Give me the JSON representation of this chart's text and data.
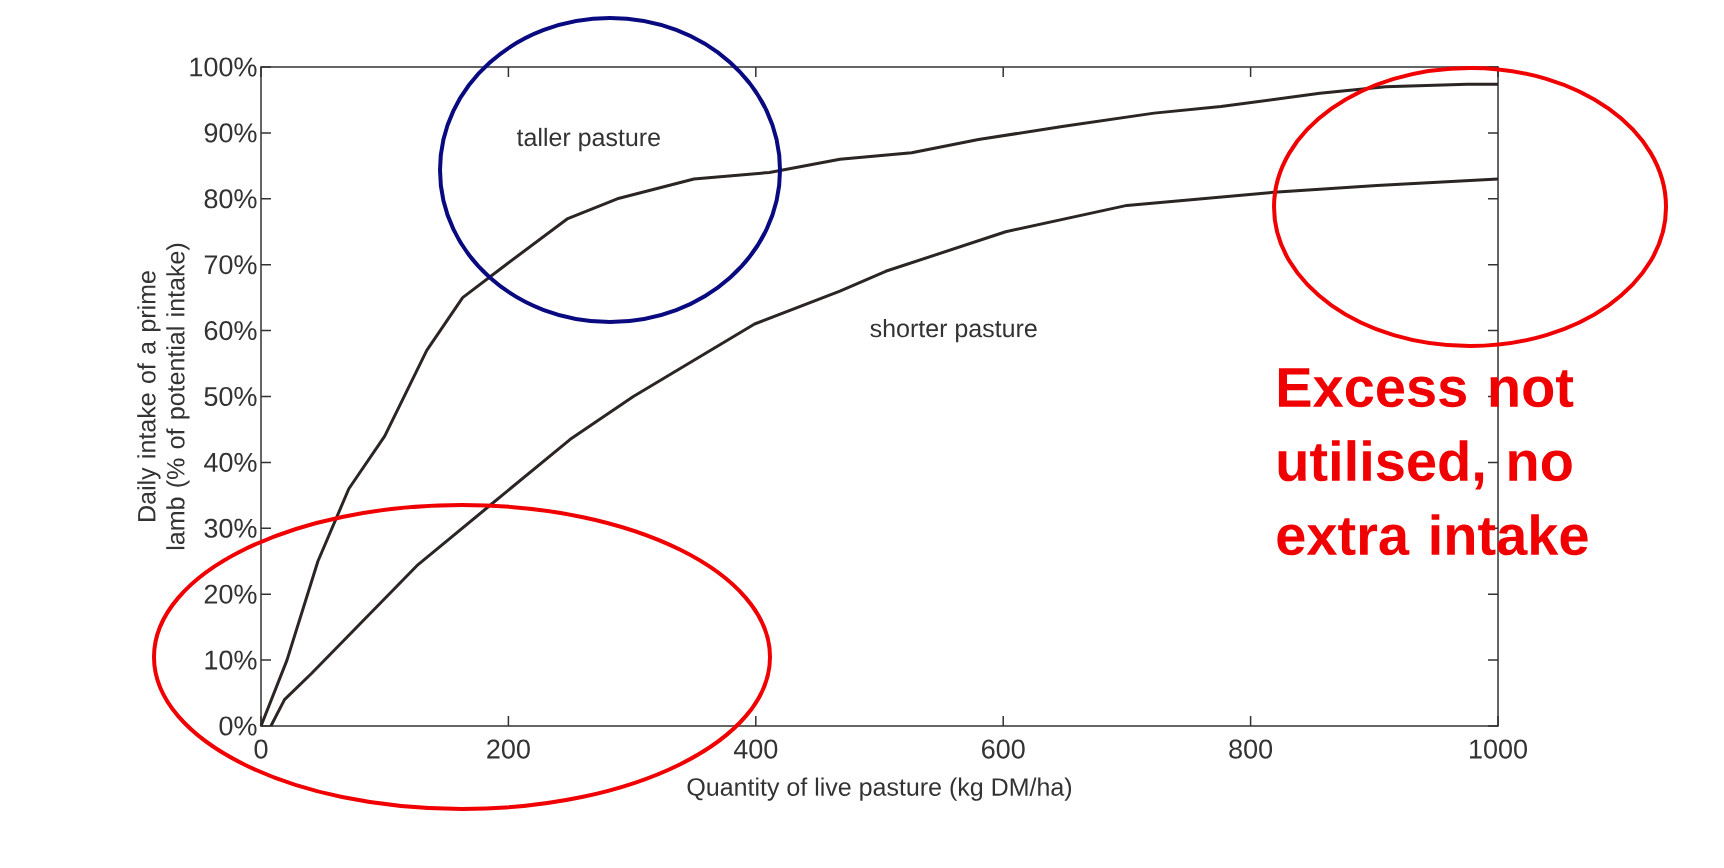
{
  "chart_data": {
    "type": "line",
    "xlabel": "Quantity of live pasture (kg DM/ha)",
    "ylabel": "Daily intake of a prime lamb (% of potential intake)",
    "xlim": [
      0,
      1000
    ],
    "ylim": [
      0,
      100
    ],
    "xticks": [
      0,
      200,
      400,
      600,
      800,
      1000
    ],
    "yticks": [
      {
        "value": 0,
        "label": "0%"
      },
      {
        "value": 10,
        "label": "10%"
      },
      {
        "value": 20,
        "label": "20%"
      },
      {
        "value": 30,
        "label": "30%"
      },
      {
        "value": 40,
        "label": "40%"
      },
      {
        "value": 50,
        "label": "50%"
      },
      {
        "value": 60,
        "label": "60%"
      },
      {
        "value": 70,
        "label": "70%"
      },
      {
        "value": 80,
        "label": "80%"
      },
      {
        "value": 90,
        "label": "90%"
      },
      {
        "value": 100,
        "label": "100%"
      }
    ],
    "grid": false,
    "legend": false,
    "marker": "none",
    "line_style": "solid",
    "series": [
      {
        "name": "taller pasture",
        "color": "#2b2523",
        "x": [
          0,
          21,
          46,
          71,
          100,
          134,
          163,
          198,
          248,
          288,
          350,
          411,
          468,
          526,
          580,
          649,
          722,
          776,
          856,
          909,
          975,
          1000
        ],
        "values": [
          0,
          10,
          25,
          36,
          44,
          57,
          65,
          70,
          77,
          80,
          83,
          84,
          86,
          87,
          89,
          91,
          93,
          94,
          96,
          97,
          97.4,
          97.4
        ]
      },
      {
        "name": "shorter pasture",
        "color": "#2b2523",
        "x": [
          8,
          19,
          41,
          127,
          182,
          250,
          301,
          399,
          468,
          505,
          602,
          700,
          819,
          902,
          1000
        ],
        "values": [
          0,
          4,
          8,
          24.5,
          33,
          43.5,
          50,
          61,
          66,
          69,
          75,
          79,
          81,
          82,
          83
        ]
      }
    ],
    "annotations": [
      "Excess not utilised, no extra intake"
    ]
  }
}
